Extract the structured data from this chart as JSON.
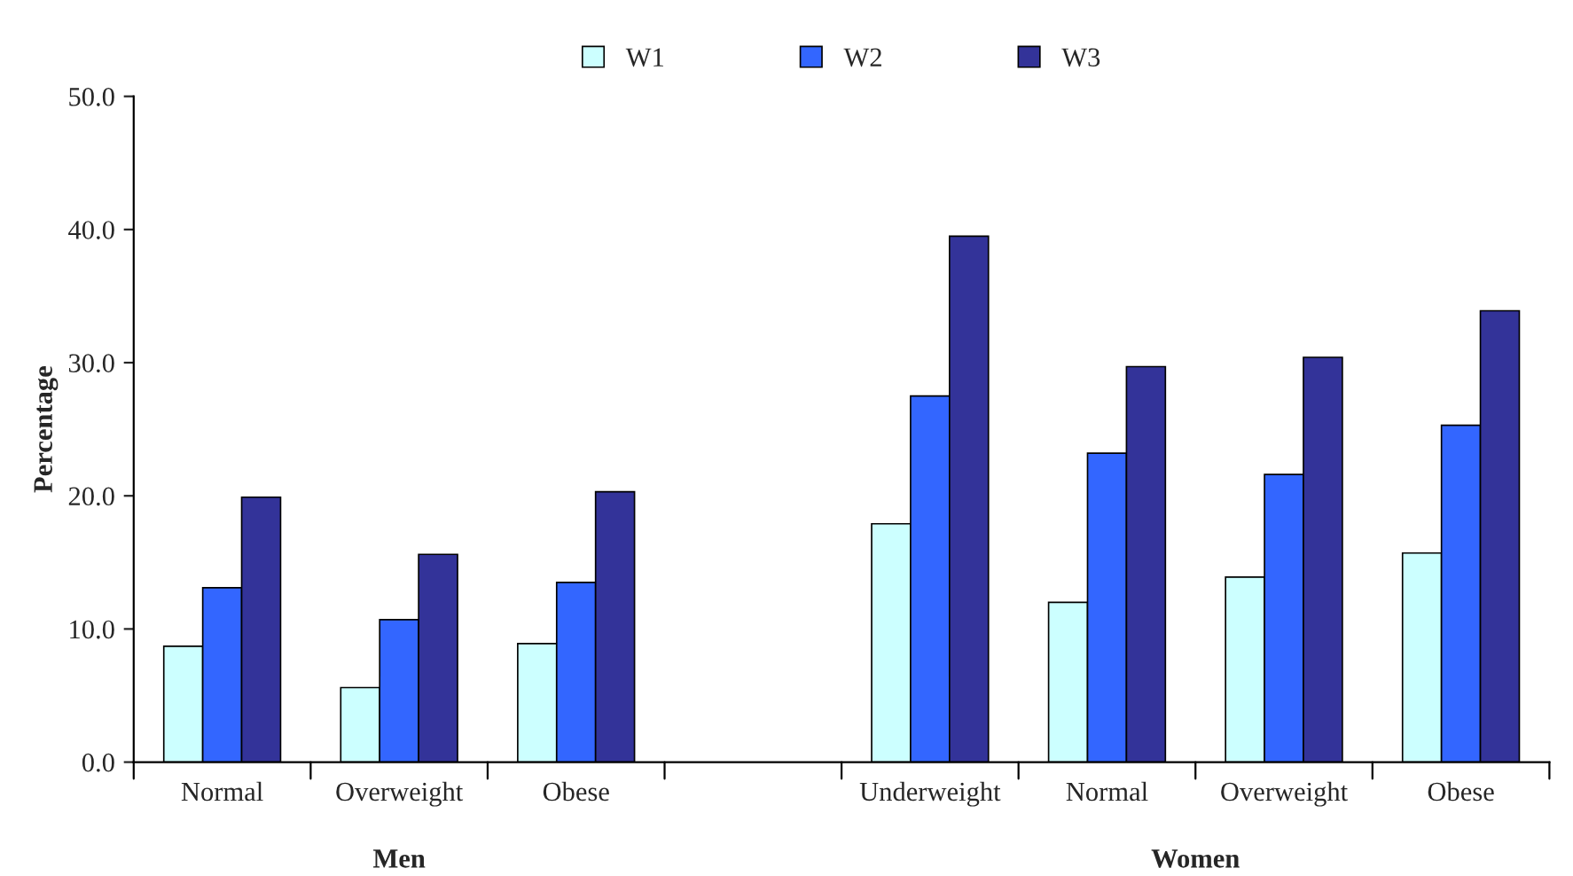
{
  "chart_data": {
    "type": "bar",
    "ylabel": "Percentage",
    "categories": [
      "Normal",
      "Overweight",
      "Obese",
      null,
      "Underweight",
      "Normal",
      "Overweight",
      "Obese"
    ],
    "series": [
      {
        "name": "W1",
        "color": "#ccffff",
        "values": [
          8.7,
          5.6,
          8.9,
          null,
          17.9,
          12.0,
          13.9,
          15.7
        ]
      },
      {
        "name": "W2",
        "color": "#3366ff",
        "values": [
          13.1,
          10.7,
          13.5,
          null,
          27.5,
          23.2,
          21.6,
          25.3
        ]
      },
      {
        "name": "W3",
        "color": "#333399",
        "values": [
          19.9,
          15.6,
          20.3,
          null,
          39.5,
          29.7,
          30.4,
          33.9
        ]
      }
    ],
    "ylim": [
      0,
      50
    ],
    "yticks": [
      {
        "value": 0,
        "label": "0.0"
      },
      {
        "value": 10,
        "label": "10.0"
      },
      {
        "value": 20,
        "label": "20.0"
      },
      {
        "value": 30,
        "label": "30.0"
      },
      {
        "value": 40,
        "label": "40.0"
      },
      {
        "value": 50,
        "label": "50.0"
      }
    ],
    "annotations": [
      "Men",
      "Women"
    ],
    "grid": false,
    "legend": "top"
  }
}
